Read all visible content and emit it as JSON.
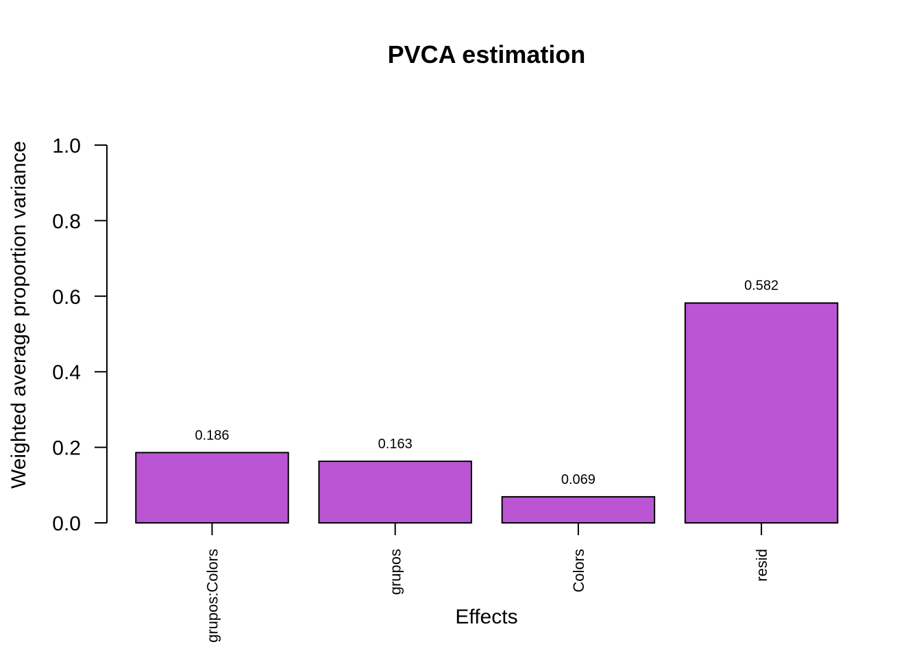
{
  "chart_data": {
    "type": "bar",
    "title": "PVCA estimation",
    "xlabel": "Effects",
    "ylabel": "Weighted average proportion variance",
    "categories": [
      "grupos:Colors",
      "grupos",
      "Colors",
      "resid"
    ],
    "values": [
      0.186,
      0.163,
      0.069,
      0.582
    ],
    "data_labels": [
      "0.186",
      "0.163",
      "0.069",
      "0.582"
    ],
    "ylim": [
      0,
      1
    ],
    "yticks": [
      0.0,
      0.2,
      0.4,
      0.6,
      0.8,
      1.0
    ],
    "ytick_labels": [
      "0.0",
      "0.2",
      "0.4",
      "0.6",
      "0.8",
      "1.0"
    ],
    "bar_color": "#BA55D3",
    "grid": false,
    "legend": "none"
  }
}
